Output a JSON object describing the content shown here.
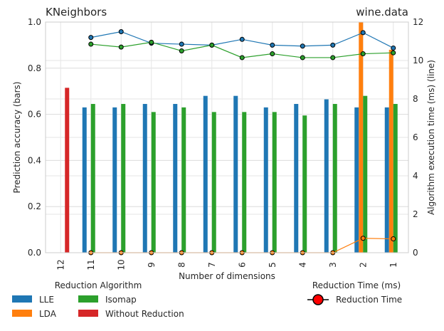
{
  "chart_data": {
    "type": "bar",
    "title_left": "KNeighbors",
    "title_right": "wine.data",
    "xlabel": "Number of dimensions",
    "ylabel_left": "Prediction accuracy (bars)",
    "ylabel_right": "Algorithm execution time (ms) (line)",
    "categories": [
      "12",
      "11",
      "10",
      "9",
      "8",
      "7",
      "6",
      "5",
      "4",
      "3",
      "2",
      "1"
    ],
    "ylim_left": [
      0,
      1.0
    ],
    "ylim_right": [
      0,
      12
    ],
    "yticks_left": [
      "0.0",
      "0.2",
      "0.4",
      "0.6",
      "0.8",
      "1.0"
    ],
    "yticks_right": [
      "0",
      "2",
      "4",
      "6",
      "8",
      "10",
      "12"
    ],
    "grid": true,
    "bar_series": [
      {
        "name": "LLE",
        "color": "#1f77b4",
        "values": [
          null,
          0.63,
          0.63,
          0.645,
          0.645,
          0.68,
          0.68,
          0.63,
          0.645,
          0.665,
          0.63,
          0.63
        ]
      },
      {
        "name": "LDA",
        "color": "#ff7f0e",
        "values": [
          null,
          null,
          null,
          null,
          null,
          null,
          null,
          null,
          null,
          null,
          1.0,
          0.88
        ]
      },
      {
        "name": "Isomap",
        "color": "#2ca02c",
        "values": [
          null,
          0.645,
          0.645,
          0.61,
          0.63,
          0.61,
          0.61,
          0.61,
          0.595,
          0.645,
          0.68,
          0.645
        ]
      },
      {
        "name": "Without Reduction",
        "color": "#d62728",
        "values": [
          0.715,
          null,
          null,
          null,
          null,
          null,
          null,
          null,
          null,
          null,
          null,
          null
        ]
      }
    ],
    "line_series": [
      {
        "name": "LLE",
        "color": "#1f77b4",
        "values": [
          null,
          11.2,
          11.5,
          10.9,
          10.85,
          10.8,
          11.1,
          10.8,
          10.75,
          10.8,
          11.45,
          10.65
        ]
      },
      {
        "name": "LDA",
        "color": "#ff7f0e",
        "values": [
          null,
          0.0,
          0.0,
          0.0,
          0.0,
          0.0,
          0.0,
          0.0,
          0.0,
          0.0,
          0.75,
          0.72
        ]
      },
      {
        "name": "Isomap",
        "color": "#2ca02c",
        "values": [
          null,
          10.85,
          10.7,
          10.95,
          10.5,
          10.8,
          10.15,
          10.35,
          10.15,
          10.15,
          10.35,
          10.4
        ]
      }
    ],
    "legend_left": {
      "title": "Reduction Algorithm",
      "entries": [
        {
          "name": "LLE",
          "color": "#1f77b4"
        },
        {
          "name": "Isomap",
          "color": "#2ca02c"
        },
        {
          "name": "LDA",
          "color": "#ff7f0e"
        },
        {
          "name": "Without Reduction",
          "color": "#d62728"
        }
      ]
    },
    "legend_right": {
      "title": "Reduction Time (ms)",
      "entry": "Reduction Time",
      "marker_color": "#ff0000"
    }
  }
}
